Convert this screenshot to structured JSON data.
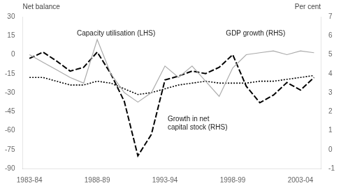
{
  "chart_data": {
    "type": "line",
    "categories": [
      "1983-84",
      null,
      null,
      null,
      null,
      "1988-89",
      null,
      null,
      null,
      null,
      "1993-94",
      null,
      null,
      null,
      null,
      "1998-99",
      null,
      null,
      null,
      null,
      "2003-04",
      null
    ],
    "series": [
      {
        "values": [
          5.0,
          4.6,
          4.2,
          3.8,
          3.5,
          5.8,
          4.0,
          3.0,
          2.5,
          3.0,
          4.4,
          3.8,
          4.4,
          3.6,
          2.8,
          4.3,
          5.0,
          5.1,
          5.2,
          5.0,
          5.2,
          5.1
        ],
        "color": "#aaaaaa",
        "line_style": "solid",
        "marker": "none",
        "axis": "y2"
      },
      {
        "values": [
          3.8,
          3.8,
          3.6,
          3.4,
          3.4,
          3.6,
          3.5,
          3.2,
          2.9,
          3.0,
          3.2,
          3.4,
          3.5,
          3.6,
          3.5,
          3.5,
          3.5,
          3.6,
          3.6,
          3.7,
          3.8,
          3.9
        ],
        "color": "black",
        "line_style": "dotted",
        "marker": "none",
        "axis": "y2"
      },
      {
        "values": [
          -3,
          2,
          -5,
          -13,
          -10,
          2,
          -15,
          -37,
          -80,
          -63,
          -20,
          -17,
          -13,
          -15,
          -10,
          0,
          -25,
          -38,
          -32,
          -22,
          -28,
          -18
        ],
        "color": "black",
        "line_style": "dashed",
        "marker": "none"
      }
    ],
    "ylabel": "Net balance",
    "y2label": "Per cent",
    "ylim": [
      -90,
      30
    ],
    "yticks": [
      -90,
      -75,
      -60,
      -45,
      -30,
      -15,
      0,
      15,
      30
    ],
    "y2lim": [
      -1,
      7
    ],
    "y2ticks": [
      -1,
      0,
      1,
      2,
      3,
      4,
      5,
      6,
      7
    ],
    "grid": false,
    "annotations": [
      {
        "text": "Capacity utilisation (LHS)",
        "x": 3.5,
        "y": 15
      },
      {
        "text": "GDP growth (RHS)",
        "x": 14.5,
        "y": 6.0,
        "axis": "y2"
      },
      {
        "text": "Growth in net\ncapital stock (RHS)",
        "x": 10.2,
        "y": 1.5,
        "axis": "y2"
      }
    ]
  }
}
